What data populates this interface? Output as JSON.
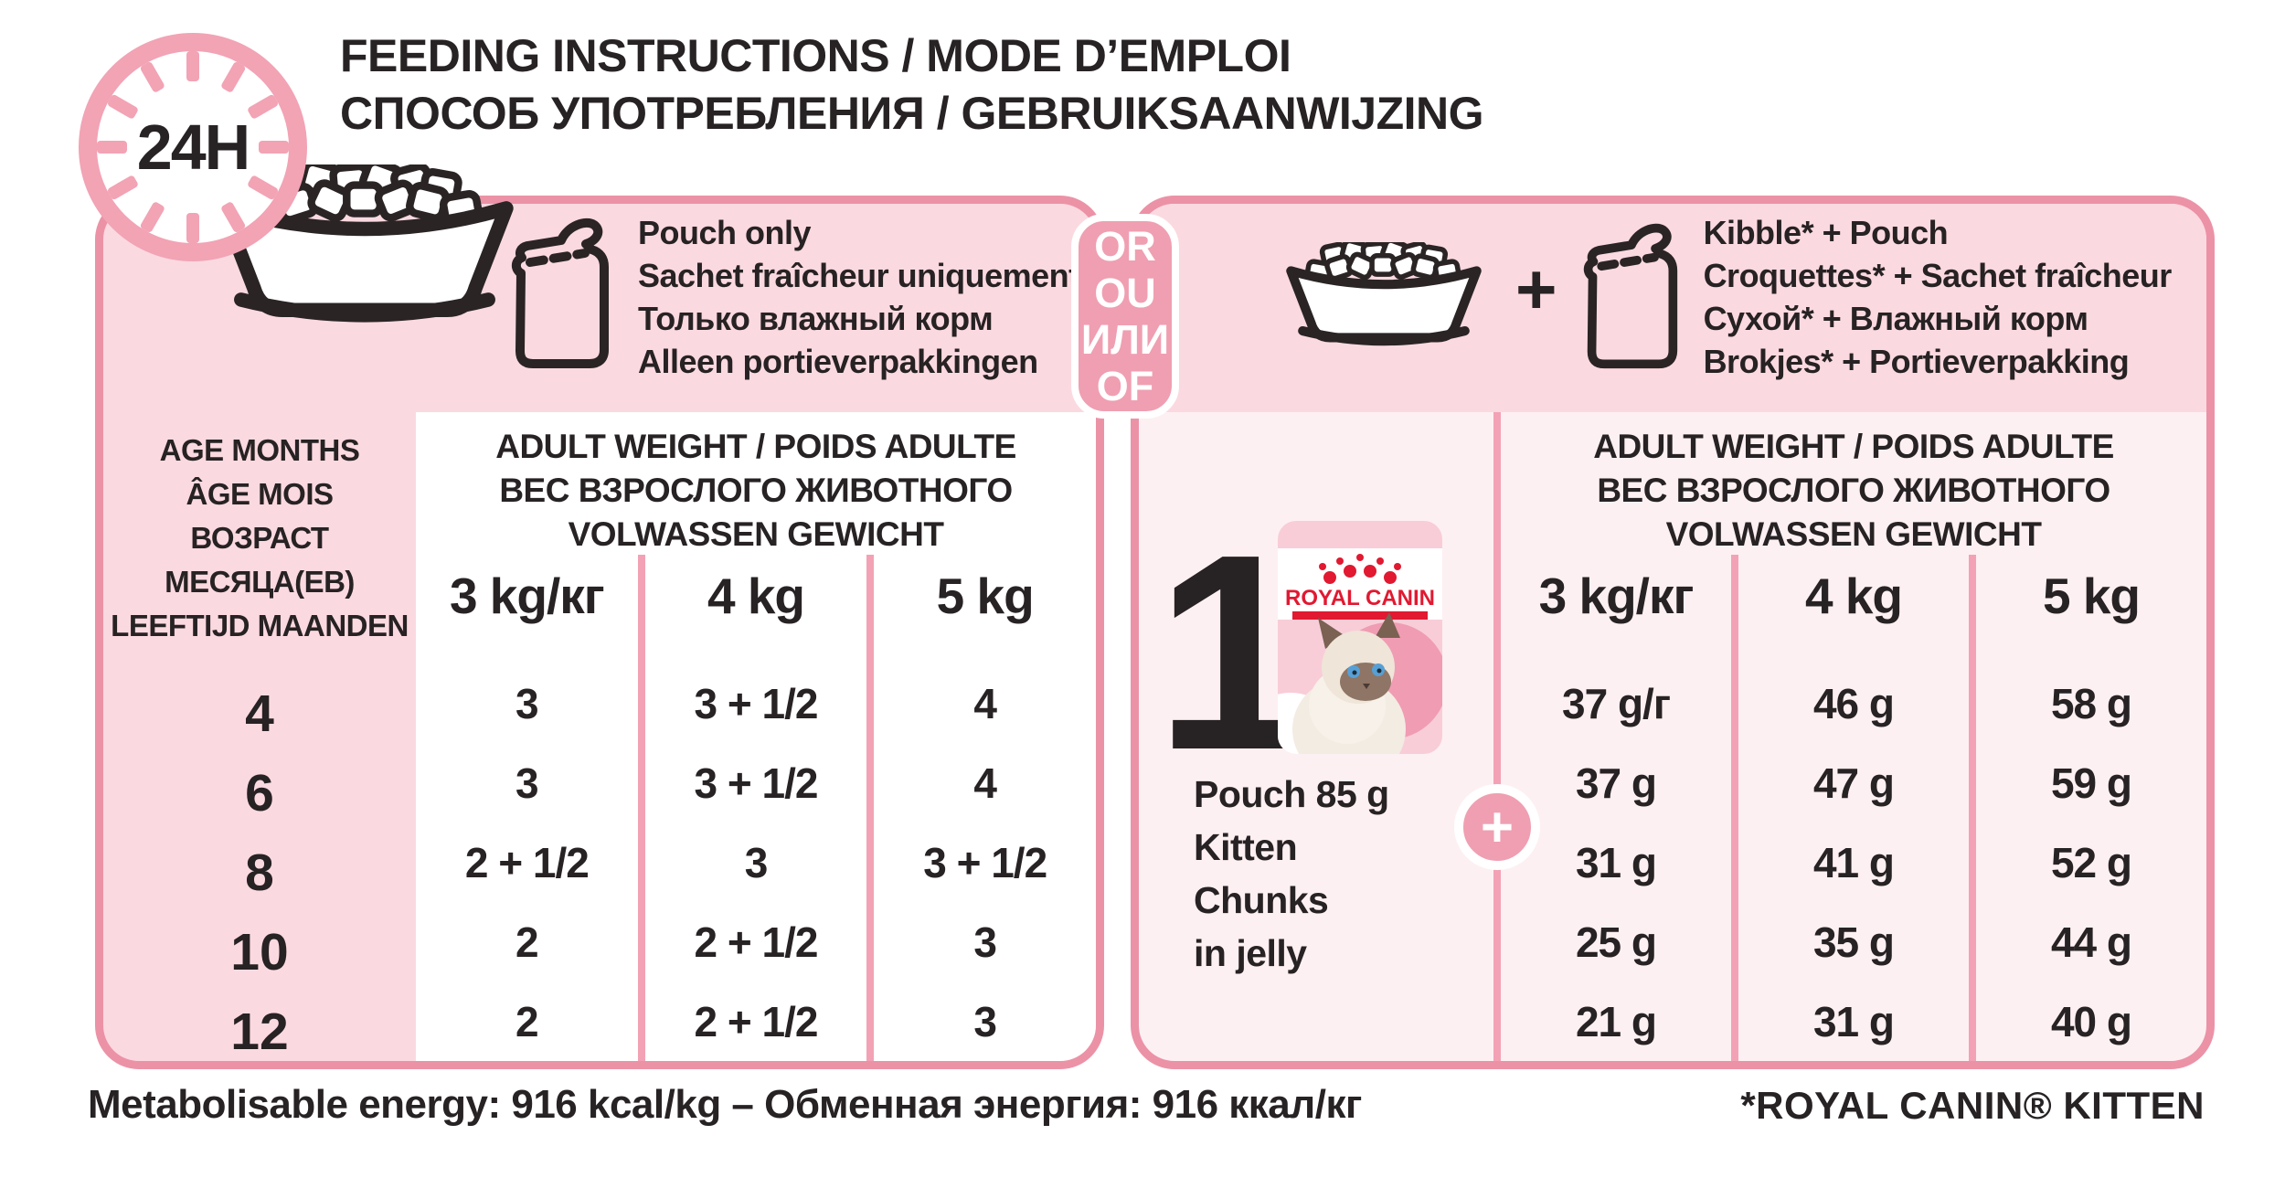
{
  "header": {
    "clock_label": "24H",
    "title_line1": "FEEDING INSTRUCTIONS / MODE D’EMPLOI",
    "title_line2": "СПОСОБ УПОТРЕБЛЕНИЯ / GEBRUIKSAANWIJZING"
  },
  "left_option": {
    "lines": [
      "Pouch only",
      "Sachet fraîcheur uniquement",
      "Только влажный корм",
      "Alleen portieverpakkingen"
    ]
  },
  "right_option": {
    "plus": "+",
    "lines": [
      "Kibble* + Pouch",
      "Croquettes* + Sachet fraîcheur",
      "Сухой* + Влажный корм",
      "Brokjes* + Portieverpakking"
    ]
  },
  "or_badge": {
    "lines": [
      "OR",
      "OU",
      "ИЛИ",
      "OF"
    ]
  },
  "age_column": {
    "header_lines": [
      "AGE MONTHS",
      "ÂGE MOIS",
      "ВОЗРАСТ МЕСЯЦА(ЕВ)",
      "LEEFTIJD MAANDEN"
    ],
    "ages": [
      "4",
      "6",
      "8",
      "10",
      "12"
    ]
  },
  "weight_header_lines": [
    "ADULT WEIGHT / POIDS ADULTE",
    "ВЕС ВЗРОСЛОГО ЖИВОТНОГО",
    "VOLWASSEN GEWICHT"
  ],
  "pouch_table": {
    "columns": [
      "3 kg/кг",
      "4 kg",
      "5 kg"
    ],
    "rows": [
      [
        "3",
        "3 + 1/2",
        "4"
      ],
      [
        "3",
        "3 + 1/2",
        "4"
      ],
      [
        "2 + 1/2",
        "3",
        "3 + 1/2"
      ],
      [
        "2",
        "2 + 1/2",
        "3"
      ],
      [
        "2",
        "2 + 1/2",
        "3"
      ]
    ]
  },
  "mixed_table": {
    "columns": [
      "3 kg/кг",
      "4 kg",
      "5 kg"
    ],
    "rows": [
      [
        "37 g/г",
        "46 g",
        "58 g"
      ],
      [
        "37 g",
        "47 g",
        "59 g"
      ],
      [
        "31 g",
        "41 g",
        "52 g"
      ],
      [
        "25 g",
        "35 g",
        "44 g"
      ],
      [
        "21 g",
        "31 g",
        "40 g"
      ]
    ]
  },
  "product": {
    "step_number": "1",
    "brand": "ROYAL CANIN",
    "desc_lines": [
      "Pouch 85 g",
      "Kitten",
      "Chunks",
      "in jelly"
    ],
    "plus_badge": "+"
  },
  "footer": {
    "energy": "Metabolisable energy: 916 kcal/kg – Обменная энергия: 916 ккал/кг",
    "footnote": "*ROYAL CANIN® KITTEN"
  },
  "colors": {
    "panel_border": "#ec92a6",
    "panel_pink": "#fbd9e0",
    "panel_light_pink": "#fdf0f2",
    "divider_pink": "#f3a2b5",
    "badge_pink": "#ef9fb1",
    "text_black": "#272223",
    "brand_red": "#e11931"
  }
}
